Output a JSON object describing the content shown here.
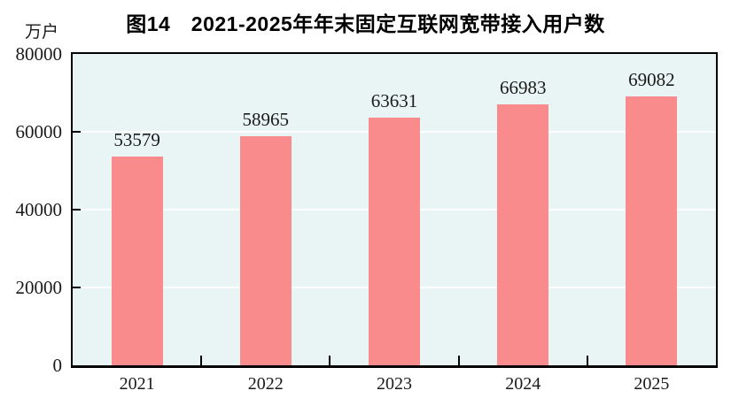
{
  "header": {
    "title": "图14　2021-2025年年末固定互联网宽带接入用户数",
    "unit_label": "万户"
  },
  "chart_data": {
    "type": "bar",
    "title": "图14　2021-2025年年末固定互联网宽带接入用户数",
    "ylabel": "万户",
    "xlabel": "",
    "categories": [
      "2021",
      "2022",
      "2023",
      "2024",
      "2025"
    ],
    "values": [
      53579,
      58965,
      63631,
      66983,
      69082
    ],
    "ylim": [
      0,
      80000
    ],
    "yticks": [
      0,
      20000,
      40000,
      60000,
      80000
    ],
    "grid": true,
    "legend": false,
    "colors": {
      "bar_fill": "#FA8B8C",
      "plot_background": "#E9F5F4",
      "gridline": "#FBFEFD",
      "axis": "#000000",
      "text": "#1A1A1A"
    }
  }
}
